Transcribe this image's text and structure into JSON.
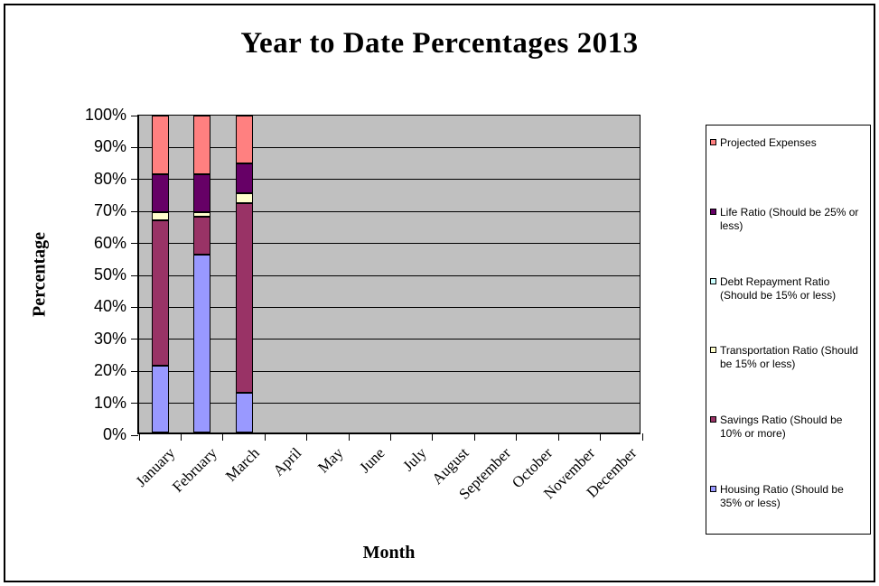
{
  "title": "Year to Date Percentages 2013",
  "y_axis": {
    "title": "Percentage",
    "tick_labels": [
      "100%",
      "90%",
      "80%",
      "70%",
      "60%",
      "50%",
      "40%",
      "30%",
      "20%",
      "10%",
      "0%"
    ]
  },
  "x_axis": {
    "title": "Month"
  },
  "colors": {
    "plot_background": "#C0C0C0",
    "gridline": "#000000"
  },
  "chart_data": {
    "type": "bar",
    "stacked": true,
    "title": "Year to Date Percentages 2013",
    "xlabel": "Month",
    "ylabel": "Percentage",
    "ylim": [
      0,
      100
    ],
    "grid": true,
    "legend_position": "right",
    "plot_bg": "#C0C0C0",
    "categories": [
      "January",
      "February",
      "March",
      "April",
      "May",
      "June",
      "July",
      "August",
      "September",
      "October",
      "November",
      "December"
    ],
    "series": [
      {
        "name": "Housing Ratio (Should be 35% or less)",
        "color": "#9999FF",
        "values": [
          21,
          56,
          12.5,
          0,
          0,
          0,
          0,
          0,
          0,
          0,
          0,
          0
        ]
      },
      {
        "name": "Savings Ratio (Should be 10% or more)",
        "color": "#993366",
        "values": [
          46,
          12,
          60,
          0,
          0,
          0,
          0,
          0,
          0,
          0,
          0,
          0
        ]
      },
      {
        "name": "Transportation Ratio (Should be 15% or less)",
        "color": "#FFFFCC",
        "values": [
          2.5,
          1.5,
          3,
          0,
          0,
          0,
          0,
          0,
          0,
          0,
          0,
          0
        ]
      },
      {
        "name": "Debt Repayment Ratio (Should be 15% or less)",
        "color": "#CCFFFF",
        "values": [
          0,
          0,
          0,
          0,
          0,
          0,
          0,
          0,
          0,
          0,
          0,
          0
        ]
      },
      {
        "name": "Life Ratio (Should be 25% or less)",
        "color": "#660066",
        "values": [
          12,
          12,
          9.5,
          0,
          0,
          0,
          0,
          0,
          0,
          0,
          0,
          0
        ]
      },
      {
        "name": "Projected Expenses",
        "color": "#FF8080",
        "values": [
          18.5,
          18.5,
          15,
          0,
          0,
          0,
          0,
          0,
          0,
          0,
          0,
          0
        ]
      }
    ]
  }
}
